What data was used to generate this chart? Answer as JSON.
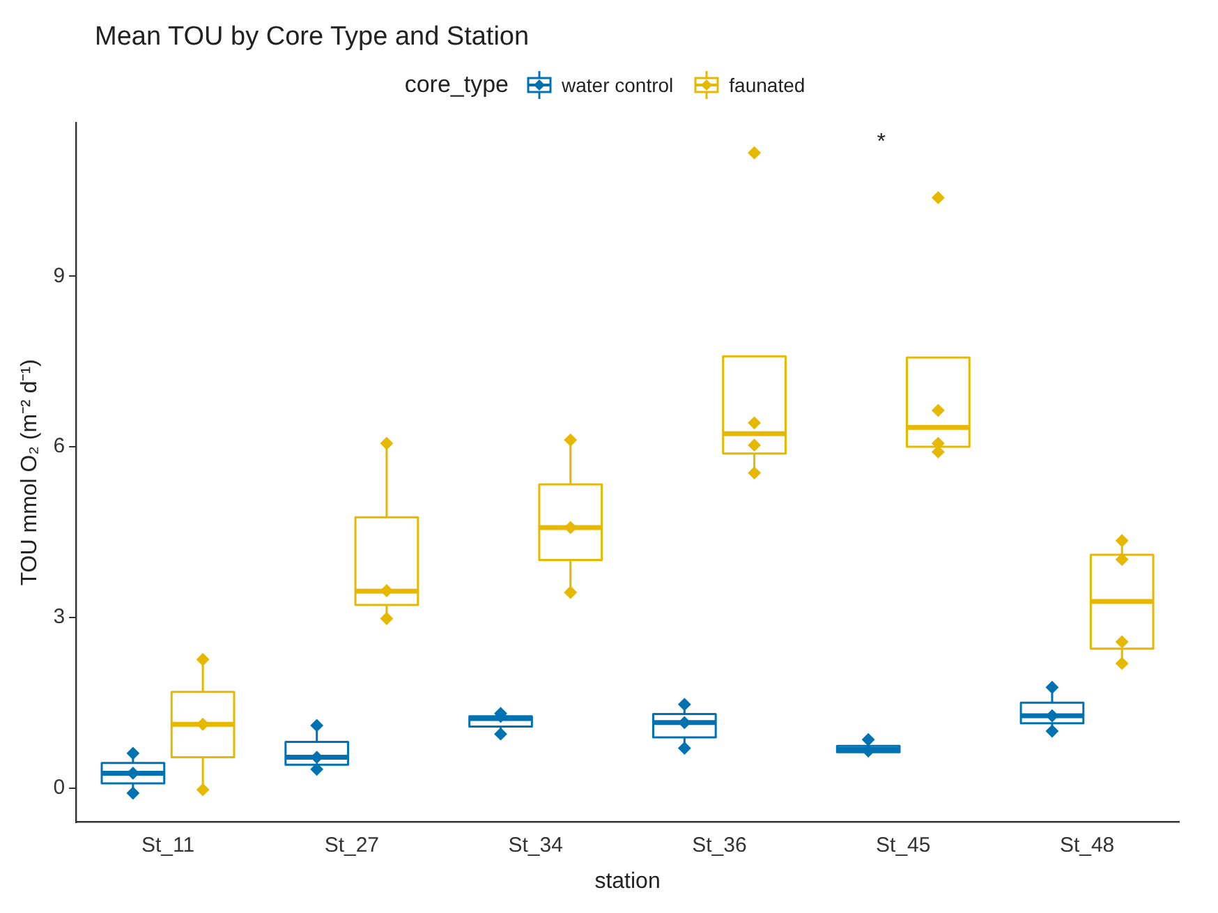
{
  "chart_data": {
    "type": "box",
    "title": "Mean TOU by Core Type and Station",
    "xlabel": "station",
    "ylabel": "TOU mmol O₂ (m⁻² d⁻¹)",
    "legend_title": "core_type",
    "legend": "top",
    "categories": [
      "St_11",
      "St_27",
      "St_34",
      "St_36",
      "St_45",
      "St_48"
    ],
    "ylim": [
      -0.6,
      11.7
    ],
    "yticks": [
      0,
      3,
      6,
      9
    ],
    "series": [
      {
        "name": "water control",
        "type": "box",
        "color": "#0072b2",
        "boxes": [
          {
            "low": -0.09,
            "q1": 0.08,
            "median": 0.26,
            "q3": 0.44,
            "high": 0.61
          },
          {
            "low": 0.33,
            "q1": 0.41,
            "median": 0.54,
            "q3": 0.81,
            "high": 1.1
          },
          {
            "low": 0.95,
            "q1": 1.08,
            "median": 1.22,
            "q3": 1.26,
            "high": 1.31
          },
          {
            "low": 0.7,
            "q1": 0.89,
            "median": 1.15,
            "q3": 1.3,
            "high": 1.47
          },
          {
            "low": 0.63,
            "q1": 0.63,
            "median": 0.68,
            "q3": 0.74,
            "high": 0.85
          },
          {
            "low": 1.0,
            "q1": 1.14,
            "median": 1.27,
            "q3": 1.5,
            "high": 1.77
          }
        ]
      },
      {
        "name": "faunated",
        "type": "box",
        "color": "#e7b800",
        "boxes": [
          {
            "low": -0.03,
            "q1": 0.54,
            "median": 1.12,
            "q3": 1.69,
            "high": 2.26
          },
          {
            "low": 2.98,
            "q1": 3.22,
            "median": 3.46,
            "q3": 4.76,
            "high": 6.06
          },
          {
            "low": 3.44,
            "q1": 4.01,
            "median": 4.58,
            "q3": 5.34,
            "high": 6.12
          },
          {
            "low": 5.54,
            "q1": 5.88,
            "median": 6.23,
            "q3": 7.59,
            "high": 7.59
          },
          {
            "low": 5.91,
            "q1": 6.0,
            "median": 6.34,
            "q3": 7.57,
            "high": 7.57
          },
          {
            "low": 2.19,
            "q1": 2.45,
            "median": 3.28,
            "q3": 4.1,
            "high": 4.35
          }
        ]
      },
      {
        "type": "scatter",
        "color": "#0072b2",
        "marker": "diamond",
        "x": [
          "St_11",
          "St_11",
          "St_11",
          "St_27",
          "St_27",
          "St_27",
          "St_34",
          "St_34",
          "St_34",
          "St_36",
          "St_36",
          "St_36",
          "St_45",
          "St_45",
          "St_48",
          "St_48",
          "St_48"
        ],
        "values": [
          0.61,
          0.26,
          -0.09,
          1.1,
          0.54,
          0.33,
          1.31,
          1.26,
          0.95,
          1.47,
          1.15,
          0.7,
          0.85,
          0.65,
          1.77,
          1.27,
          1.0
        ]
      },
      {
        "type": "scatter",
        "color": "#e7b800",
        "marker": "diamond",
        "x": [
          "St_11",
          "St_11",
          "St_11",
          "St_27",
          "St_27",
          "St_27",
          "St_34",
          "St_34",
          "St_34",
          "St_36",
          "St_36",
          "St_36",
          "St_36",
          "St_45",
          "St_45",
          "St_45",
          "St_45",
          "St_48",
          "St_48",
          "St_48",
          "St_48"
        ],
        "values": [
          2.26,
          1.12,
          -0.03,
          6.06,
          3.47,
          2.98,
          6.12,
          4.58,
          3.44,
          11.17,
          6.42,
          6.03,
          5.54,
          10.38,
          6.64,
          6.06,
          5.91,
          4.35,
          4.02,
          2.57,
          2.19
        ]
      }
    ],
    "annotations": [
      "*"
    ]
  }
}
